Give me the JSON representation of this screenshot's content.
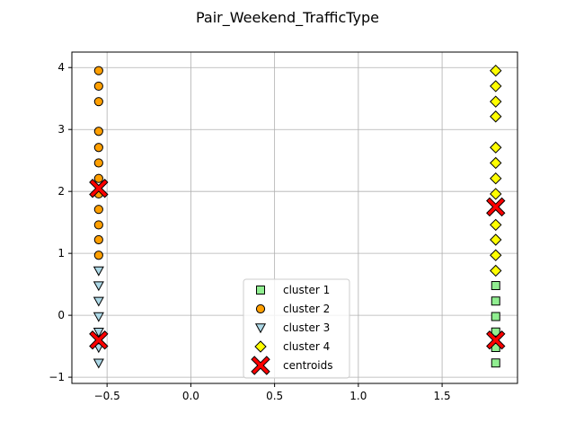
{
  "chart_data": {
    "type": "scatter",
    "title": "Pair_Weekend_TrafficType",
    "xlabel": "",
    "ylabel": "",
    "xlim": [
      -0.71,
      1.95
    ],
    "ylim": [
      -1.1,
      4.25
    ],
    "xticks": [
      -0.5,
      0.0,
      0.5,
      1.0,
      1.5
    ],
    "xtick_labels": [
      "−0.5",
      "0.0",
      "0.5",
      "1.0",
      "1.5"
    ],
    "yticks": [
      -1,
      0,
      1,
      2,
      3,
      4
    ],
    "ytick_labels": [
      "−1",
      "0",
      "1",
      "2",
      "3",
      "4"
    ],
    "grid": true,
    "legend_position": "lower center",
    "series": [
      {
        "name": "cluster 1",
        "marker": "square",
        "color": "#90ee90",
        "points": [
          [
            1.82,
            0.48
          ],
          [
            1.82,
            0.23
          ],
          [
            1.82,
            -0.02
          ],
          [
            1.82,
            -0.27
          ],
          [
            1.82,
            -0.52
          ],
          [
            1.82,
            -0.77
          ]
        ]
      },
      {
        "name": "cluster 2",
        "marker": "circle",
        "color": "#ff9f00",
        "points": [
          [
            -0.55,
            3.95
          ],
          [
            -0.55,
            3.7
          ],
          [
            -0.55,
            3.45
          ],
          [
            -0.55,
            2.97
          ],
          [
            -0.55,
            2.71
          ],
          [
            -0.55,
            2.46
          ],
          [
            -0.55,
            2.21
          ],
          [
            -0.55,
            1.96
          ],
          [
            -0.55,
            1.71
          ],
          [
            -0.55,
            1.46
          ],
          [
            -0.55,
            1.22
          ],
          [
            -0.55,
            0.97
          ]
        ]
      },
      {
        "name": "cluster 3",
        "marker": "triangle-down",
        "color": "#add8e6",
        "points": [
          [
            -0.55,
            0.72
          ],
          [
            -0.55,
            0.48
          ],
          [
            -0.55,
            0.23
          ],
          [
            -0.55,
            -0.02
          ],
          [
            -0.55,
            -0.27
          ],
          [
            -0.55,
            -0.52
          ],
          [
            -0.55,
            -0.77
          ]
        ]
      },
      {
        "name": "cluster 4",
        "marker": "diamond",
        "color": "#ffff00",
        "points": [
          [
            1.82,
            3.95
          ],
          [
            1.82,
            3.7
          ],
          [
            1.82,
            3.45
          ],
          [
            1.82,
            3.21
          ],
          [
            1.82,
            2.71
          ],
          [
            1.82,
            2.46
          ],
          [
            1.82,
            2.21
          ],
          [
            1.82,
            1.96
          ],
          [
            1.82,
            1.46
          ],
          [
            1.82,
            1.22
          ],
          [
            1.82,
            0.97
          ],
          [
            1.82,
            0.72
          ]
        ]
      },
      {
        "name": "centroids",
        "marker": "x",
        "color": "#ff0000",
        "points": [
          [
            -0.55,
            2.05
          ],
          [
            -0.55,
            -0.4
          ],
          [
            1.82,
            1.75
          ],
          [
            1.82,
            -0.4
          ]
        ]
      }
    ]
  }
}
